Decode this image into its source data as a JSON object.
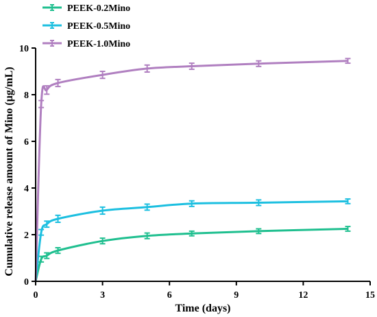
{
  "chart_data": {
    "type": "line",
    "title": "",
    "xlabel": "Time (days)",
    "ylabel": "Cumulative release amount of Mino (μg/mL)",
    "xlim": [
      0,
      15
    ],
    "ylim": [
      0,
      10
    ],
    "xticks": [
      0,
      3,
      6,
      9,
      12,
      15
    ],
    "yticks": [
      0,
      2,
      4,
      6,
      8,
      10
    ],
    "x_tick_labels": [
      "0",
      "3",
      "6",
      "9",
      "12",
      "15"
    ],
    "y_tick_labels": [
      "0",
      "2",
      "4",
      "6",
      "8",
      "10"
    ],
    "grid": false,
    "legend_position": "top-left",
    "x": [
      0,
      0.25,
      0.5,
      1,
      3,
      5,
      7,
      10,
      14
    ],
    "series": [
      {
        "name": "PEEK-0.2Mino",
        "color": "#1fbf8f",
        "values": [
          0,
          0.95,
          1.1,
          1.32,
          1.73,
          1.95,
          2.05,
          2.15,
          2.25
        ],
        "error": [
          0,
          0.12,
          0.12,
          0.12,
          0.12,
          0.12,
          0.1,
          0.1,
          0.1
        ]
      },
      {
        "name": "PEEK-0.5Mino",
        "color": "#1cbfe0",
        "values": [
          0,
          2.1,
          2.45,
          2.68,
          3.03,
          3.18,
          3.33,
          3.37,
          3.43
        ],
        "error": [
          0,
          0.12,
          0.13,
          0.15,
          0.15,
          0.13,
          0.12,
          0.12,
          0.1
        ]
      },
      {
        "name": "PEEK-1.0Mino",
        "color": "#b07fc0",
        "values": [
          0,
          7.6,
          8.2,
          8.5,
          8.85,
          9.12,
          9.22,
          9.33,
          9.45
        ],
        "error": [
          0,
          0.15,
          0.18,
          0.15,
          0.15,
          0.15,
          0.13,
          0.12,
          0.1
        ]
      }
    ]
  }
}
